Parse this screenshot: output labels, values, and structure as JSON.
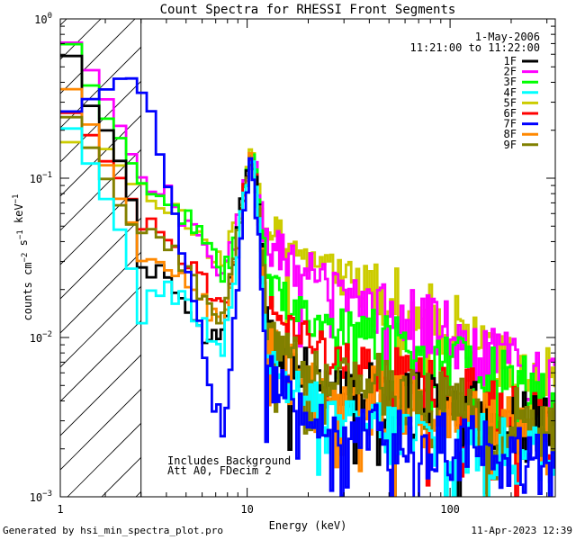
{
  "footer": {
    "generated_by": "Generated by hsi_min_spectra_plot.pro",
    "timestamp": "11-Apr-2023 12:39"
  },
  "chart_data": {
    "type": "line",
    "title": "Count Spectra for RHESSI Front Segments",
    "xlabel": "Energy (keV)",
    "ylabel": "counts cm-2 s-1 keV-1",
    "xscale": "log",
    "yscale": "log",
    "xlim": [
      1.2,
      330
    ],
    "ylim": [
      0.001,
      1.0
    ],
    "x_ticks": [
      {
        "value": 10,
        "label": "10"
      },
      {
        "value": 100,
        "label": "100"
      }
    ],
    "x_tick_label_min": "1",
    "y_ticks": [
      {
        "value": 1.0,
        "base": "10",
        "exp": "0"
      },
      {
        "value": 0.1,
        "base": "10",
        "exp": "-1"
      },
      {
        "value": 0.01,
        "base": "10",
        "exp": "-2"
      },
      {
        "value": 0.001,
        "base": "10",
        "exp": "-3"
      }
    ],
    "date": "1-May-2006",
    "time_range": "11:21:00 to 11:22:00",
    "hatched_region_keV": [
      1.2,
      3.0
    ],
    "annotations": [
      "Includes Background",
      "Att A0, FDecim 2"
    ],
    "series": [
      {
        "name": "1F",
        "color": "#000000",
        "x": [
          1.3,
          1.6,
          2.0,
          2.6,
          3.0,
          3.6,
          4.3,
          5.0,
          5.8,
          6.6,
          7.6,
          8.6,
          9.6,
          10.4,
          11.2,
          12.5,
          15,
          20,
          25,
          30,
          40,
          50,
          70,
          100,
          150,
          200,
          250,
          300
        ],
        "values": [
          0.65,
          0.33,
          0.2,
          0.1,
          0.025,
          0.03,
          0.022,
          0.016,
          0.011,
          0.0095,
          0.01,
          0.03,
          0.085,
          0.15,
          0.1,
          0.011,
          0.007,
          0.0062,
          0.0055,
          0.005,
          0.0045,
          0.004,
          0.0037,
          0.0033,
          0.0031,
          0.0029,
          0.0027,
          0.0025
        ]
      },
      {
        "name": "2F",
        "color": "#ff00ff",
        "x": [
          1.3,
          1.6,
          2.0,
          2.6,
          3.0,
          3.6,
          4.3,
          5.0,
          5.8,
          6.6,
          7.6,
          8.6,
          9.6,
          10.4,
          11.2,
          12.5,
          15,
          20,
          25,
          30,
          40,
          50,
          70,
          100,
          150,
          200,
          250,
          300
        ],
        "values": [
          0.8,
          0.52,
          0.33,
          0.16,
          0.11,
          0.09,
          0.07,
          0.05,
          0.04,
          0.032,
          0.028,
          0.04,
          0.085,
          0.14,
          0.1,
          0.04,
          0.032,
          0.026,
          0.022,
          0.02,
          0.017,
          0.015,
          0.012,
          0.01,
          0.008,
          0.0068,
          0.006,
          0.0052
        ]
      },
      {
        "name": "3F",
        "color": "#00ff00",
        "x": [
          1.3,
          1.6,
          2.0,
          2.6,
          3.0,
          3.6,
          4.3,
          5.0,
          5.8,
          6.6,
          7.6,
          8.6,
          9.6,
          10.4,
          11.2,
          12.5,
          15,
          20,
          25,
          30,
          40,
          50,
          70,
          100,
          150,
          200,
          250,
          300
        ],
        "values": [
          0.78,
          0.45,
          0.25,
          0.14,
          0.095,
          0.085,
          0.072,
          0.055,
          0.042,
          0.032,
          0.025,
          0.035,
          0.08,
          0.15,
          0.09,
          0.022,
          0.018,
          0.014,
          0.012,
          0.011,
          0.0095,
          0.0085,
          0.0075,
          0.0065,
          0.0056,
          0.005,
          0.0046,
          0.0042
        ]
      },
      {
        "name": "4F",
        "color": "#00ffff",
        "x": [
          1.3,
          1.6,
          2.0,
          2.6,
          3.0,
          3.6,
          4.3,
          5.0,
          5.8,
          6.6,
          7.6,
          8.6,
          9.6,
          10.4,
          11.2,
          12.5,
          15,
          20,
          25,
          30,
          40,
          50,
          70,
          100,
          150,
          200,
          250,
          300
        ],
        "values": [
          0.22,
          0.14,
          0.075,
          0.035,
          0.012,
          0.022,
          0.02,
          0.017,
          0.013,
          0.01,
          0.0085,
          0.025,
          0.075,
          0.13,
          0.08,
          0.008,
          0.0055,
          0.004,
          0.0035,
          0.003,
          0.0028,
          0.0025,
          0.0023,
          0.0021,
          0.002,
          0.0019,
          0.0018,
          0.0017
        ]
      },
      {
        "name": "5F",
        "color": "#cccc00",
        "x": [
          1.3,
          1.6,
          2.0,
          2.6,
          3.0,
          3.6,
          4.3,
          5.0,
          5.8,
          6.6,
          7.6,
          8.6,
          9.6,
          10.4,
          11.2,
          12.5,
          15,
          20,
          25,
          30,
          40,
          50,
          70,
          100,
          150,
          200,
          250,
          300
        ],
        "values": [
          0.18,
          0.16,
          0.15,
          0.1,
          0.085,
          0.07,
          0.06,
          0.05,
          0.042,
          0.036,
          0.03,
          0.045,
          0.09,
          0.15,
          0.1,
          0.05,
          0.04,
          0.032,
          0.027,
          0.024,
          0.02,
          0.018,
          0.015,
          0.012,
          0.009,
          0.0072,
          0.0062,
          0.0052
        ]
      },
      {
        "name": "6F",
        "color": "#ff0000",
        "x": [
          1.3,
          1.6,
          2.0,
          2.6,
          3.0,
          3.6,
          4.3,
          5.0,
          5.8,
          6.6,
          7.6,
          8.6,
          9.6,
          10.4,
          11.2,
          12.5,
          15,
          20,
          25,
          30,
          40,
          50,
          70,
          100,
          150,
          200,
          250,
          300
        ],
        "values": [
          0.28,
          0.2,
          0.13,
          0.08,
          0.05,
          0.045,
          0.038,
          0.03,
          0.024,
          0.019,
          0.016,
          0.03,
          0.08,
          0.14,
          0.09,
          0.015,
          0.012,
          0.0095,
          0.0082,
          0.0073,
          0.0063,
          0.0056,
          0.0049,
          0.0043,
          0.0037,
          0.0033,
          0.003,
          0.0028
        ]
      },
      {
        "name": "7F",
        "color": "#0000ff",
        "x": [
          1.3,
          1.6,
          2.0,
          2.6,
          3.0,
          3.6,
          4.3,
          5.0,
          5.8,
          6.6,
          7.6,
          8.6,
          9.6,
          10.4,
          11.2,
          12.5,
          15,
          20,
          25,
          30,
          40,
          50,
          70,
          100,
          150,
          200,
          250,
          300
        ],
        "values": [
          0.25,
          0.3,
          0.37,
          0.44,
          0.35,
          0.17,
          0.07,
          0.03,
          0.012,
          0.005,
          0.0025,
          0.012,
          0.06,
          0.12,
          0.06,
          0.006,
          0.0045,
          0.0035,
          0.003,
          0.0028,
          0.0026,
          0.0024,
          0.0022,
          0.002,
          0.0019,
          0.0018,
          0.0017,
          0.0016
        ]
      },
      {
        "name": "8F",
        "color": "#ff8800",
        "x": [
          1.3,
          1.6,
          2.0,
          2.6,
          3.0,
          3.6,
          4.3,
          5.0,
          5.8,
          6.6,
          7.6,
          8.6,
          9.6,
          10.4,
          11.2,
          12.5,
          15,
          20,
          25,
          30,
          40,
          50,
          70,
          100,
          150,
          200,
          250,
          300
        ],
        "values": [
          0.38,
          0.25,
          0.12,
          0.06,
          0.035,
          0.035,
          0.03,
          0.024,
          0.018,
          0.014,
          0.011,
          0.025,
          0.075,
          0.13,
          0.08,
          0.01,
          0.0075,
          0.006,
          0.005,
          0.0045,
          0.0041,
          0.0037,
          0.0033,
          0.003,
          0.0028,
          0.0026,
          0.0024,
          0.0022
        ]
      },
      {
        "name": "9F",
        "color": "#808000",
        "x": [
          1.3,
          1.6,
          2.0,
          2.6,
          3.0,
          3.6,
          4.3,
          5.0,
          5.8,
          6.6,
          7.6,
          8.6,
          9.6,
          10.4,
          11.2,
          12.5,
          15,
          20,
          25,
          30,
          40,
          50,
          70,
          100,
          150,
          200,
          250,
          300
        ],
        "values": [
          0.27,
          0.18,
          0.1,
          0.055,
          0.045,
          0.04,
          0.034,
          0.028,
          0.021,
          0.016,
          0.013,
          0.028,
          0.08,
          0.14,
          0.09,
          0.012,
          0.009,
          0.0072,
          0.006,
          0.0055,
          0.005,
          0.0045,
          0.004,
          0.0036,
          0.0032,
          0.003,
          0.0028,
          0.0026
        ]
      }
    ]
  }
}
